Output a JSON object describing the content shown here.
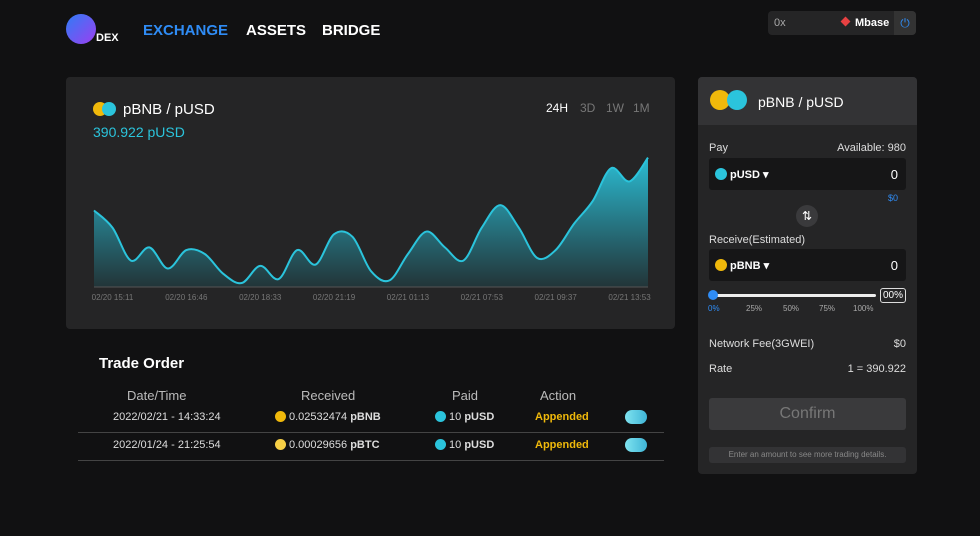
{
  "nav": {
    "logo": "DEX",
    "links": [
      "EXCHANGE",
      "ASSETS",
      "BRIDGE"
    ]
  },
  "wallet": {
    "address": "0x",
    "network": "Mbase"
  },
  "market": {
    "pair": "pBNB / pUSD",
    "price": "390.922 pUSD",
    "ranges": [
      "24H",
      "3D",
      "1W",
      "1M"
    ]
  },
  "chart_data": {
    "type": "area",
    "color": "#2bc4dc",
    "categories": [
      null,
      "02/20 15:11",
      null,
      null,
      null,
      "02/20 16:46",
      null,
      null,
      null,
      "02/20 18:33",
      null,
      null,
      null,
      "02/20 21:19",
      null,
      null,
      null,
      "02/21 01:13",
      null,
      null,
      null,
      "02/21 07:53",
      null,
      null,
      null,
      "02/21 09:37",
      null,
      null,
      null,
      "02/21 13:53",
      null
    ],
    "values": [
      58,
      45,
      20,
      30,
      14,
      28,
      25,
      10,
      3,
      16,
      6,
      28,
      17,
      40,
      38,
      12,
      5,
      25,
      42,
      30,
      20,
      45,
      62,
      45,
      22,
      28,
      48,
      65,
      90,
      80,
      98
    ],
    "ylim": [
      0,
      100
    ]
  },
  "trade_order": {
    "title": "Trade Order",
    "columns": [
      "Date/Time",
      "Received",
      "Paid",
      "Action"
    ],
    "rows": [
      [
        "2022/02/21 - 14:33:24",
        "0.02532474",
        "pBNB",
        "10",
        "pUSD",
        "Appended"
      ],
      [
        "2022/01/24 - 21:25:54",
        "0.00029656",
        "pBTC",
        "10",
        "pUSD",
        "Appended"
      ]
    ]
  },
  "swap": {
    "pair": "pBNB / pUSD",
    "pay_label": "Pay",
    "available": "Available: 980",
    "pay_token": "pUSD",
    "pay_amount": "0",
    "pay_usd": "$0",
    "receive_label": "Receive(Estimated)",
    "receive_token": "pBNB",
    "receive_amount": "0",
    "slider_marks": [
      "0%",
      "25%",
      "50%",
      "75%",
      "100%"
    ],
    "slider_value": "00%",
    "fee_label": "Network Fee(3GWEI)",
    "fee": "$0",
    "rate_label": "Rate",
    "rate": "1 = 390.922",
    "button": "Confirm",
    "hint": "Enter an amount to see more trading details."
  }
}
